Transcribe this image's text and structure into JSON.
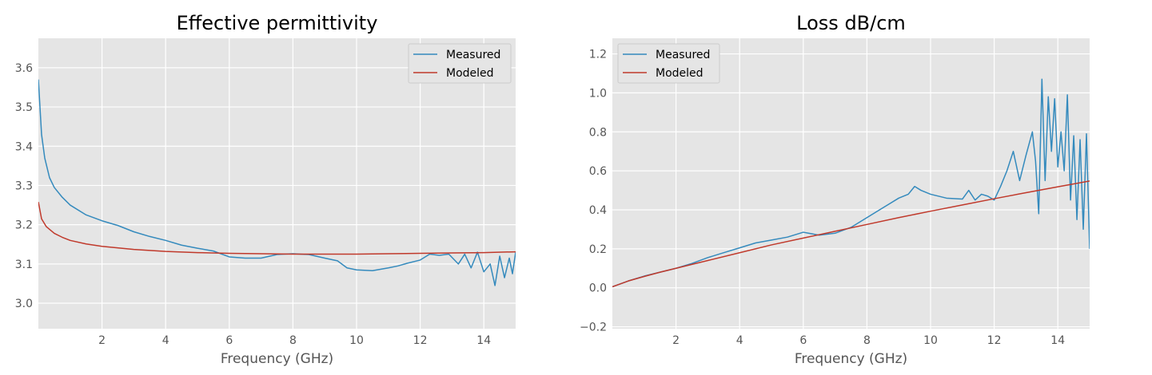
{
  "colors": {
    "measured": "#348abd",
    "modeled": "#c0392b",
    "panel_bg": "#e5e5e5",
    "grid": "#ffffff"
  },
  "chart_data": [
    {
      "type": "line",
      "title": "Effective permittivity",
      "xlabel": "Frequency (GHz)",
      "ylabel": "",
      "xlim": [
        0,
        15
      ],
      "ylim": [
        2.935,
        3.675
      ],
      "xticks": [
        2,
        4,
        6,
        8,
        10,
        12,
        14
      ],
      "yticks": [
        3.0,
        3.1,
        3.2,
        3.3,
        3.4,
        3.5,
        3.6
      ],
      "grid": true,
      "legend": "top-right",
      "series": [
        {
          "name": "Measured",
          "color": "#348abd",
          "x": [
            0.0,
            0.1,
            0.2,
            0.35,
            0.5,
            0.75,
            1.0,
            1.5,
            2.0,
            2.5,
            3.0,
            3.5,
            4.0,
            4.5,
            5.0,
            5.5,
            6.0,
            6.5,
            7.0,
            7.5,
            8.0,
            8.5,
            9.0,
            9.4,
            9.7,
            10.0,
            10.5,
            11.0,
            11.3,
            11.6,
            12.0,
            12.3,
            12.6,
            12.9,
            13.2,
            13.4,
            13.6,
            13.8,
            14.0,
            14.2,
            14.35,
            14.5,
            14.65,
            14.8,
            14.9,
            15.0
          ],
          "y": [
            3.57,
            3.43,
            3.37,
            3.32,
            3.295,
            3.27,
            3.25,
            3.225,
            3.21,
            3.198,
            3.182,
            3.17,
            3.16,
            3.148,
            3.14,
            3.133,
            3.118,
            3.115,
            3.115,
            3.124,
            3.126,
            3.124,
            3.115,
            3.108,
            3.09,
            3.085,
            3.083,
            3.09,
            3.095,
            3.102,
            3.11,
            3.125,
            3.122,
            3.125,
            3.1,
            3.125,
            3.09,
            3.13,
            3.08,
            3.1,
            3.045,
            3.12,
            3.065,
            3.115,
            3.075,
            3.13
          ]
        },
        {
          "name": "Modeled",
          "color": "#c0392b",
          "x": [
            0.0,
            0.1,
            0.25,
            0.5,
            0.75,
            1.0,
            1.5,
            2.0,
            3.0,
            4.0,
            5.0,
            6.0,
            7.0,
            8.0,
            9.0,
            10.0,
            11.0,
            12.0,
            13.0,
            14.0,
            15.0
          ],
          "y": [
            3.258,
            3.215,
            3.195,
            3.178,
            3.168,
            3.16,
            3.151,
            3.145,
            3.137,
            3.132,
            3.129,
            3.127,
            3.126,
            3.125,
            3.125,
            3.125,
            3.126,
            3.127,
            3.128,
            3.129,
            3.131
          ]
        }
      ]
    },
    {
      "type": "line",
      "title": "Loss dB/cm",
      "xlabel": "Frequency (GHz)",
      "ylabel": "",
      "xlim": [
        0,
        15
      ],
      "ylim": [
        -0.21,
        1.28
      ],
      "xticks": [
        2,
        4,
        6,
        8,
        10,
        12,
        14
      ],
      "yticks": [
        -0.2,
        0.0,
        0.2,
        0.4,
        0.6,
        0.8,
        1.0,
        1.2
      ],
      "ytick_labels": [
        "−0.2",
        "0.0",
        "0.2",
        "0.4",
        "0.6",
        "0.8",
        "1.0",
        "1.2"
      ],
      "grid": true,
      "legend": "top-left",
      "series": [
        {
          "name": "Measured",
          "color": "#348abd",
          "x": [
            0.0,
            0.5,
            1.0,
            1.5,
            2.0,
            2.5,
            3.0,
            3.5,
            4.0,
            4.5,
            5.0,
            5.5,
            6.0,
            6.5,
            7.0,
            7.5,
            8.0,
            8.5,
            9.0,
            9.3,
            9.5,
            9.7,
            10.0,
            10.5,
            11.0,
            11.2,
            11.4,
            11.6,
            11.8,
            12.0,
            12.2,
            12.4,
            12.6,
            12.8,
            13.0,
            13.2,
            13.3,
            13.4,
            13.5,
            13.6,
            13.7,
            13.8,
            13.9,
            14.0,
            14.1,
            14.2,
            14.3,
            14.4,
            14.5,
            14.6,
            14.7,
            14.8,
            14.9,
            15.0
          ],
          "y": [
            0.005,
            0.035,
            0.06,
            0.08,
            0.1,
            0.125,
            0.155,
            0.18,
            0.205,
            0.23,
            0.245,
            0.26,
            0.285,
            0.27,
            0.28,
            0.31,
            0.36,
            0.41,
            0.46,
            0.48,
            0.52,
            0.5,
            0.48,
            0.46,
            0.455,
            0.5,
            0.45,
            0.48,
            0.47,
            0.45,
            0.52,
            0.6,
            0.7,
            0.55,
            0.68,
            0.8,
            0.65,
            0.38,
            1.07,
            0.55,
            0.98,
            0.7,
            0.97,
            0.62,
            0.8,
            0.6,
            0.99,
            0.45,
            0.78,
            0.35,
            0.76,
            0.3,
            0.79,
            0.2
          ]
        },
        {
          "name": "Modeled",
          "color": "#c0392b",
          "x": [
            0.0,
            0.25,
            0.5,
            1.0,
            1.5,
            2.0,
            3.0,
            4.0,
            5.0,
            6.0,
            7.0,
            8.0,
            9.0,
            10.0,
            11.0,
            12.0,
            13.0,
            14.0,
            15.0
          ],
          "y": [
            0.005,
            0.02,
            0.035,
            0.058,
            0.08,
            0.1,
            0.14,
            0.18,
            0.22,
            0.255,
            0.29,
            0.325,
            0.36,
            0.393,
            0.425,
            0.457,
            0.488,
            0.518,
            0.548
          ]
        }
      ]
    }
  ]
}
